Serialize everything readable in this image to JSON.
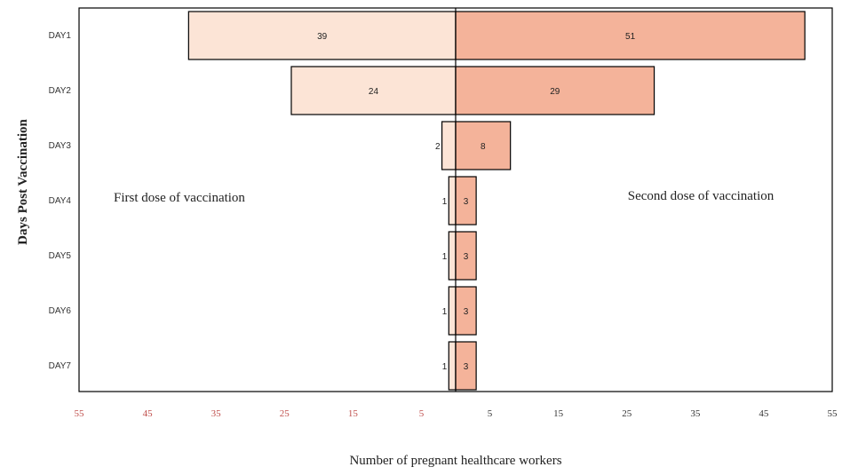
{
  "chart_data": {
    "type": "bar",
    "orientation": "horizontal-diverging",
    "categories": [
      "DAY1",
      "DAY2",
      "DAY3",
      "DAY4",
      "DAY5",
      "DAY6",
      "DAY7"
    ],
    "series": [
      {
        "name": "First dose of vaccination",
        "direction": "left",
        "values": [
          39,
          24,
          2,
          1,
          1,
          1,
          1
        ],
        "color": "#fce4d6"
      },
      {
        "name": "Second dose of vaccination",
        "direction": "right",
        "values": [
          51,
          29,
          8,
          3,
          3,
          3,
          3
        ],
        "color": "#f4b39a"
      }
    ],
    "xlabel": "Number of pregnant healthcare workers",
    "ylabel": "Days Post Vaccination",
    "xlim": [
      -55,
      55
    ],
    "x_ticks": [
      -55,
      -45,
      -35,
      -25,
      -15,
      -5,
      5,
      15,
      25,
      35,
      45,
      55
    ],
    "x_tick_labels": [
      "55",
      "45",
      "35",
      "25",
      "15",
      "5",
      "5",
      "15",
      "25",
      "35",
      "45",
      "55"
    ],
    "x_tick_colors": [
      "#c0504d",
      "#c0504d",
      "#c0504d",
      "#c0504d",
      "#c0504d",
      "#c0504d",
      "#333333",
      "#333333",
      "#333333",
      "#333333",
      "#333333",
      "#333333"
    ],
    "grid": false,
    "legend": "annotations"
  }
}
